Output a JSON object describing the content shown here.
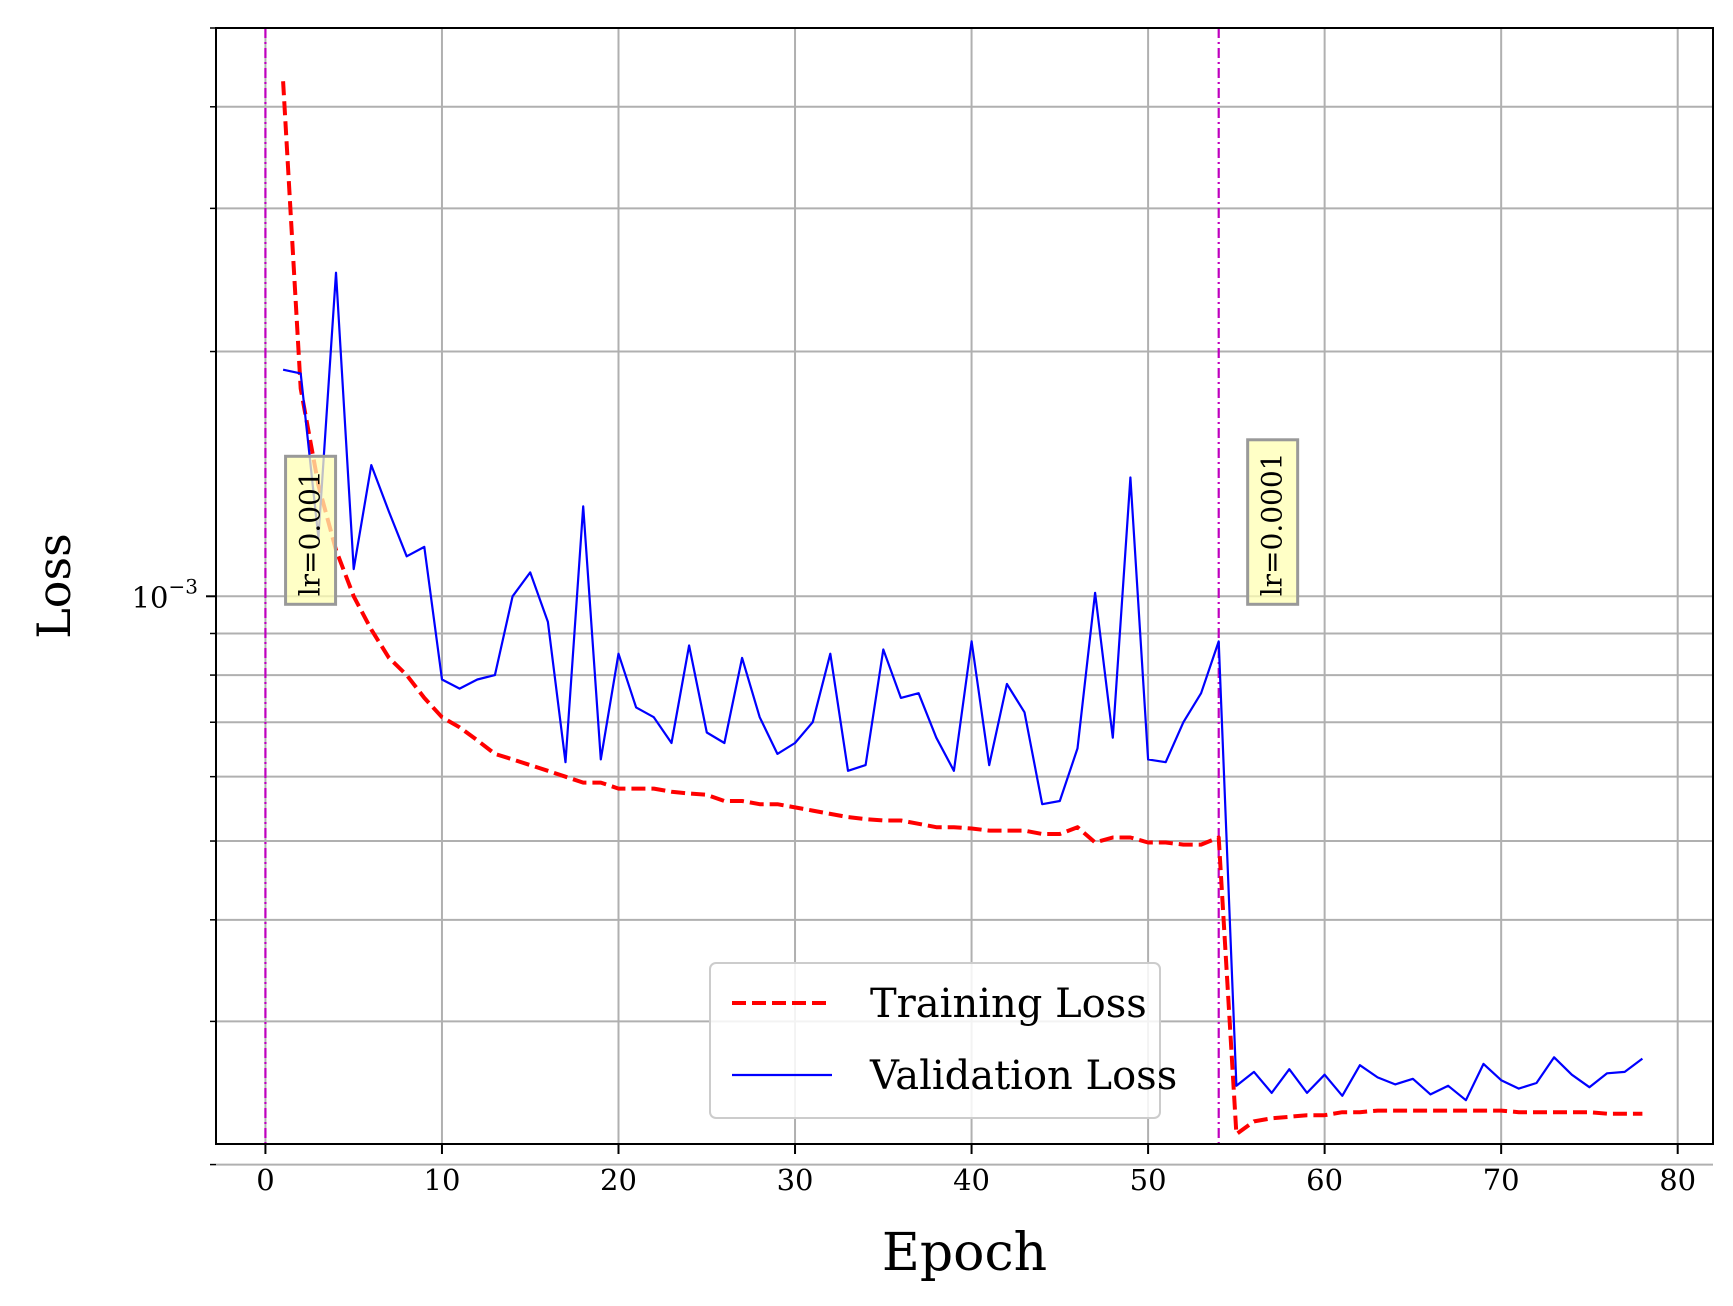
{
  "chart_data": {
    "type": "line",
    "xlabel": "Epoch",
    "ylabel": "Loss",
    "y_scale": "log",
    "xlim": [
      -2.8,
      82
    ],
    "ylim": [
      0.000212,
      0.005
    ],
    "x_ticks": [
      0,
      10,
      20,
      30,
      40,
      50,
      60,
      70,
      80
    ],
    "y_major_tick_labels": [
      {
        "value": 0.001,
        "base": "10",
        "exponent": "−3"
      }
    ],
    "y_minor_ticks": [
      0.0002,
      0.0003,
      0.0004,
      0.0005,
      0.0006,
      0.0007,
      0.0008,
      0.0009,
      0.002,
      0.003,
      0.004,
      0.005
    ],
    "grid": true,
    "legend_position": "lower center",
    "series": [
      {
        "name": "Training Loss",
        "color": "#ff0000",
        "style": "dashed",
        "x": [
          1,
          2,
          3,
          4,
          5,
          6,
          7,
          8,
          9,
          10,
          11,
          12,
          13,
          14,
          15,
          16,
          17,
          18,
          19,
          20,
          21,
          22,
          23,
          24,
          25,
          26,
          27,
          28,
          29,
          30,
          31,
          32,
          33,
          34,
          35,
          36,
          37,
          38,
          39,
          40,
          41,
          42,
          43,
          44,
          45,
          46,
          47,
          48,
          49,
          50,
          51,
          52,
          53,
          54,
          55,
          56,
          57,
          58,
          59,
          60,
          61,
          62,
          63,
          64,
          65,
          66,
          67,
          68,
          69,
          70,
          71,
          72,
          73,
          74,
          75,
          76,
          77,
          78
        ],
        "values": [
          0.0043,
          0.0018,
          0.00137,
          0.00114,
          0.001,
          0.00091,
          0.00084,
          0.0008,
          0.00075,
          0.00071,
          0.00069,
          0.000665,
          0.00064,
          0.00063,
          0.00062,
          0.00061,
          0.0006,
          0.00059,
          0.00059,
          0.00058,
          0.00058,
          0.00058,
          0.000575,
          0.000572,
          0.00057,
          0.00056,
          0.00056,
          0.000555,
          0.000555,
          0.00055,
          0.000545,
          0.00054,
          0.000535,
          0.000532,
          0.00053,
          0.00053,
          0.000525,
          0.00052,
          0.00052,
          0.000518,
          0.000515,
          0.000515,
          0.000515,
          0.00051,
          0.00051,
          0.00052,
          0.000498,
          0.000505,
          0.000505,
          0.000498,
          0.000498,
          0.000495,
          0.000495,
          0.000505,
          0.000218,
          0.000226,
          0.000228,
          0.000229,
          0.00023,
          0.00023,
          0.000232,
          0.000232,
          0.000233,
          0.000233,
          0.000233,
          0.000233,
          0.000233,
          0.000233,
          0.000233,
          0.000233,
          0.000232,
          0.000232,
          0.000232,
          0.000232,
          0.000232,
          0.000231,
          0.000231,
          0.000231
        ]
      },
      {
        "name": "Validation Loss",
        "color": "#0000ff",
        "style": "solid",
        "x": [
          1,
          2,
          3,
          4,
          5,
          6,
          7,
          8,
          9,
          10,
          11,
          12,
          13,
          14,
          15,
          16,
          17,
          18,
          19,
          20,
          21,
          22,
          23,
          24,
          25,
          26,
          27,
          28,
          29,
          30,
          31,
          32,
          33,
          34,
          35,
          36,
          37,
          38,
          39,
          40,
          41,
          42,
          43,
          44,
          45,
          46,
          47,
          48,
          49,
          50,
          51,
          52,
          53,
          54,
          55,
          56,
          57,
          58,
          59,
          60,
          61,
          62,
          63,
          64,
          65,
          66,
          67,
          68,
          69,
          70,
          71,
          72,
          73,
          74,
          75,
          76,
          77,
          78
        ],
        "values": [
          0.0019,
          0.00188,
          0.00118,
          0.0025,
          0.00108,
          0.00145,
          0.00127,
          0.00112,
          0.00115,
          0.00079,
          0.00077,
          0.00079,
          0.0008,
          0.001,
          0.00107,
          0.00093,
          0.000625,
          0.00129,
          0.00063,
          0.00085,
          0.00073,
          0.00071,
          0.00066,
          0.00087,
          0.00068,
          0.00066,
          0.00084,
          0.00071,
          0.00064,
          0.00066,
          0.0007,
          0.00085,
          0.00061,
          0.00062,
          0.00086,
          0.00075,
          0.00076,
          0.00067,
          0.00061,
          0.00088,
          0.00062,
          0.00078,
          0.00072,
          0.000555,
          0.00056,
          0.00065,
          0.00101,
          0.00067,
          0.0014,
          0.00063,
          0.000625,
          0.0007,
          0.00076,
          0.00088,
          0.00025,
          0.00026,
          0.000245,
          0.000262,
          0.000245,
          0.000258,
          0.000243,
          0.000265,
          0.000256,
          0.000251,
          0.000255,
          0.000244,
          0.00025,
          0.00024,
          0.000266,
          0.000254,
          0.000248,
          0.000252,
          0.000271,
          0.000258,
          0.000249,
          0.000259,
          0.00026,
          0.00027
        ]
      }
    ],
    "vlines": [
      {
        "x": 0,
        "color": "#bf00bf",
        "style": "dashdot"
      },
      {
        "x": 54,
        "color": "#bf00bf",
        "style": "dashdot"
      }
    ],
    "annotations": [
      {
        "text": "lr=0.001",
        "x": 2.5,
        "y": 0.001,
        "rotation": 90
      },
      {
        "text": "lr=0.0001",
        "x": 57,
        "y": 0.001,
        "rotation": 90
      }
    ]
  }
}
